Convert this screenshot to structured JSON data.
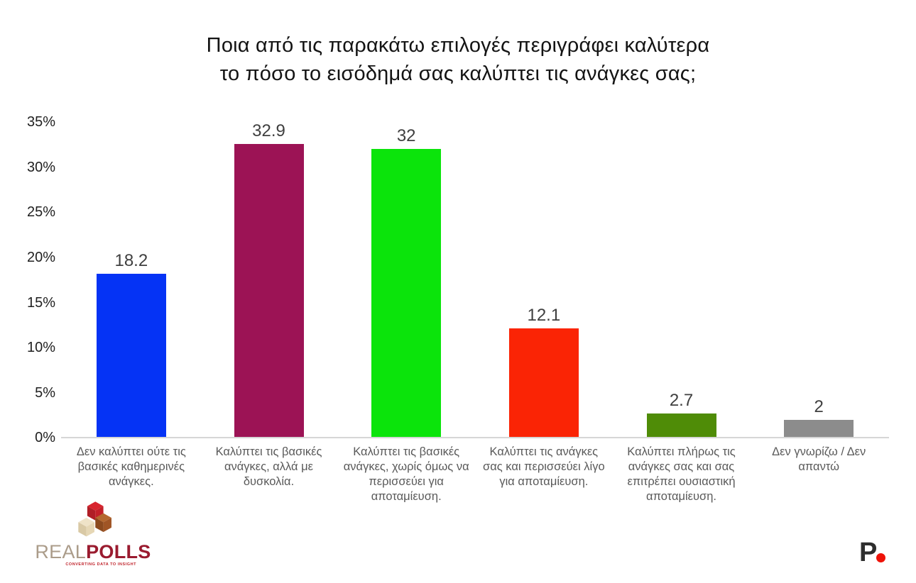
{
  "chart_data": {
    "type": "bar",
    "title": "Ποια από τις παρακάτω επιλογές περιγράφει καλύτερα το πόσο το εισόδημά σας καλύπτει τις ανάγκες σας;",
    "title_lines": [
      "Ποια από τις παρακάτω επιλογές περιγράφει καλύτερα",
      "το πόσο το εισόδημά σας καλύπτει τις ανάγκες σας;"
    ],
    "categories": [
      "Δεν καλύπτει ούτε τις βασικές καθημερινές ανάγκες.",
      "Καλύπτει τις βασικές ανάγκες, αλλά με δυσκολία.",
      "Καλύπτει τις βασικές ανάγκες, χωρίς όμως να περισσεύει για αποταμίευση.",
      "Καλύπτει τις ανάγκες σας και περισσεύει λίγο για αποταμίευση.",
      "Καλύπτει πλήρως τις ανάγκες σας  και σας επιτρέπει  ουσιαστική αποταμίευση.",
      "Δεν γνωρίζω / Δεν απαντώ"
    ],
    "values": [
      18.2,
      32.9,
      32,
      12.1,
      2.7,
      2
    ],
    "bar_value_labels": [
      "18.2",
      "32.9",
      "32",
      "12.1",
      "2.7",
      "2"
    ],
    "colors": [
      "#0533F5",
      "#9C1355",
      "#0BE40B",
      "#FA2405",
      "#4F8C07",
      "#8C8C8C"
    ],
    "yticks": [
      "35%",
      "30%",
      "25%",
      "20%",
      "15%",
      "10%",
      "5%",
      "0%"
    ],
    "ylim": [
      0,
      35
    ],
    "xlabel": "",
    "ylabel": "",
    "grid": false,
    "legend": "none",
    "axis_line_color": "#D6D6D6",
    "category_text_color": "#595959"
  },
  "footer": {
    "brand": {
      "name_light": "REAL",
      "name_bold": "POLLS",
      "tagline": "CONVERTING DATA TO INSIGHT"
    },
    "publisher": {
      "letter": "P"
    }
  }
}
